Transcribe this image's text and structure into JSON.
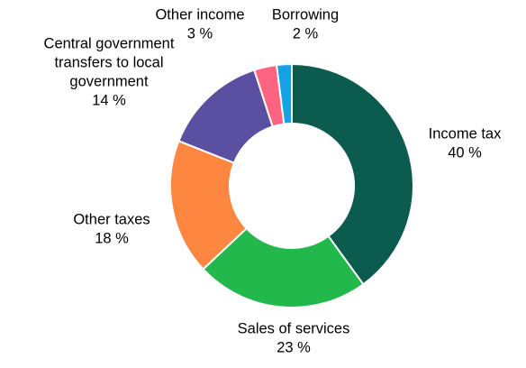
{
  "chart_data": {
    "type": "pie",
    "variant": "donut",
    "title": "",
    "legend": "none",
    "slices": [
      {
        "label_lines": [
          "Income tax"
        ],
        "value": 40,
        "value_label": "40 %",
        "color": "#0b5b4e"
      },
      {
        "label_lines": [
          "Sales of services"
        ],
        "value": 23,
        "value_label": "23 %",
        "color": "#22b84b"
      },
      {
        "label_lines": [
          "Other taxes"
        ],
        "value": 18,
        "value_label": "18 %",
        "color": "#fd8640"
      },
      {
        "label_lines": [
          "Central government",
          "transfers to local",
          "government"
        ],
        "value": 14,
        "value_label": "14 %",
        "color": "#5a4fa0"
      },
      {
        "label_lines": [
          "Other income"
        ],
        "value": 3,
        "value_label": "3 %",
        "color": "#fe6382"
      },
      {
        "label_lines": [
          "Borrowing"
        ],
        "value": 2,
        "value_label": "2 %",
        "color": "#18a2e6"
      }
    ]
  }
}
